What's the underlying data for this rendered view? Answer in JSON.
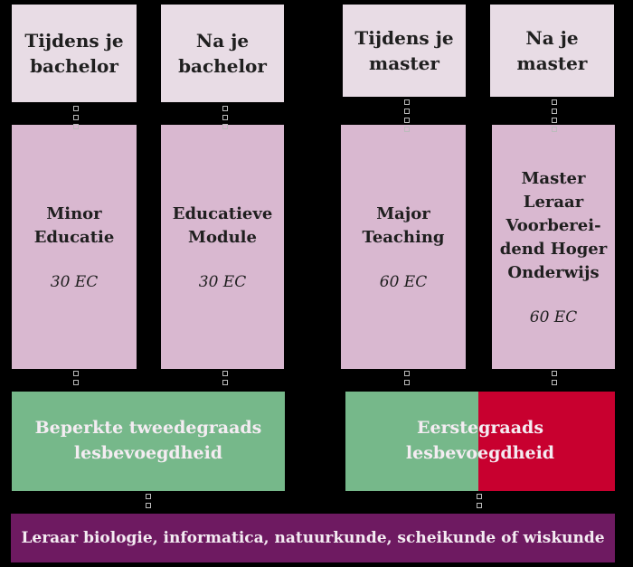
{
  "colors": {
    "top": "#e8dce5",
    "middle": "#d9b8d0",
    "green": "#76b88a",
    "red": "#c8002f",
    "purple": "#6e1a61"
  },
  "phases": [
    {
      "label": "Tijdens je bachelor"
    },
    {
      "label": "Na je bachelor"
    },
    {
      "label": "Tijdens je master"
    },
    {
      "label": "Na je master"
    }
  ],
  "programs": [
    {
      "title": "Minor Educatie",
      "credits": "30 EC"
    },
    {
      "title": "Educatieve Module",
      "credits": "30 EC"
    },
    {
      "title": "Major Teaching",
      "credits": "60 EC"
    },
    {
      "title": "Master Leraar Voorberei-dend Hoger Onderwijs",
      "credits": "60 EC"
    }
  ],
  "qualifications": {
    "second_degree": "Beperkte tweedegraads lesbevoegdheid",
    "first_degree": "Eerstegraads lesbevoegdheid"
  },
  "result": "Leraar biologie, informatica, natuurkunde, scheikunde of wiskunde"
}
